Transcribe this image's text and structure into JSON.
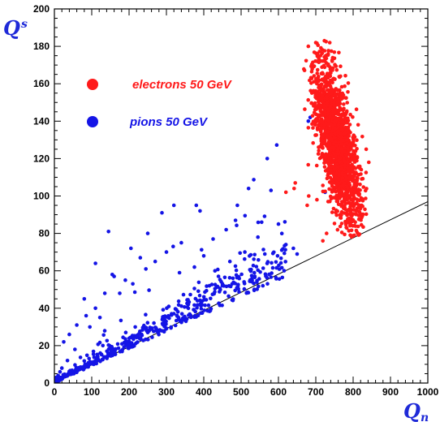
{
  "chart_data": {
    "type": "scatter",
    "title": "",
    "xlabel": "Q",
    "xlabel_sub": "n",
    "ylabel": "Q",
    "ylabel_sub": "s",
    "xlim": [
      0,
      1000
    ],
    "ylim": [
      0,
      200
    ],
    "x_ticks": [
      0,
      100,
      200,
      300,
      400,
      500,
      600,
      700,
      800,
      900,
      1000
    ],
    "y_ticks": [
      0,
      20,
      40,
      60,
      80,
      100,
      120,
      140,
      160,
      180,
      200
    ],
    "x_minor_step": 20,
    "y_minor_step": 5,
    "grid": false,
    "legend_placement": "top-left",
    "reference_line": {
      "x": [
        0,
        1000
      ],
      "y": [
        0,
        97
      ],
      "color": "#000000"
    },
    "series": [
      {
        "name": "electrons 50 GeV",
        "color": "#ff1a1a",
        "cluster": {
          "count": 1700,
          "center": [
            758,
            128
          ],
          "sd_x": 30,
          "sd_y": 17,
          "slope_y_per_x": -0.38,
          "x_range": [
            660,
            840
          ],
          "y_range": [
            78,
            183
          ]
        },
        "points": [
          [
            700,
            182
          ],
          [
            723,
            183
          ],
          [
            680,
            180
          ],
          [
            645,
            107
          ],
          [
            642,
            104
          ],
          [
            620,
            102
          ],
          [
            681,
            100
          ],
          [
            703,
            98
          ],
          [
            719,
            76
          ],
          [
            729,
            80
          ],
          [
            803,
            79
          ],
          [
            835,
            125
          ],
          [
            842,
            118
          ],
          [
            677,
            95
          ]
        ]
      },
      {
        "name": "pions 50 GeV",
        "color": "#1414e6",
        "band": {
          "count": 520,
          "x_range": [
            0,
            620
          ],
          "ratio_mean": 0.105,
          "ratio_sd": 0.012
        },
        "points": [
          [
            145,
            81
          ],
          [
            320,
            95
          ],
          [
            380,
            95
          ],
          [
            390,
            92
          ],
          [
            288,
            91
          ],
          [
            340,
            75
          ],
          [
            425,
            77
          ],
          [
            460,
            82
          ],
          [
            485,
            87
          ],
          [
            490,
            95
          ],
          [
            520,
            104
          ],
          [
            570,
            120
          ],
          [
            580,
            103
          ],
          [
            600,
            85
          ],
          [
            555,
            86
          ],
          [
            545,
            78
          ],
          [
            510,
            70
          ],
          [
            470,
            65
          ],
          [
            430,
            60
          ],
          [
            415,
            52
          ],
          [
            400,
            68
          ],
          [
            375,
            62
          ],
          [
            335,
            59
          ],
          [
            318,
            73
          ],
          [
            300,
            70
          ],
          [
            270,
            65
          ],
          [
            230,
            67
          ],
          [
            205,
            72
          ],
          [
            190,
            55
          ],
          [
            160,
            57
          ],
          [
            135,
            48
          ],
          [
            110,
            40
          ],
          [
            85,
            36
          ],
          [
            60,
            31
          ],
          [
            40,
            26
          ],
          [
            25,
            22
          ],
          [
            80,
            45
          ],
          [
            110,
            64
          ],
          [
            155,
            58
          ],
          [
            250,
            80
          ],
          [
            450,
            53
          ],
          [
            245,
            61
          ],
          [
            210,
            53
          ],
          [
            175,
            48
          ],
          [
            122,
            35
          ],
          [
            95,
            30
          ],
          [
            55,
            18
          ],
          [
            35,
            12
          ],
          [
            20,
            8
          ],
          [
            10,
            4
          ],
          [
            5,
            2
          ],
          [
            15,
            6
          ],
          [
            745,
            113
          ],
          [
            680,
            140
          ],
          [
            685,
            142
          ],
          [
            725,
            102
          ],
          [
            640,
            72
          ],
          [
            650,
            69
          ],
          [
            620,
            74
          ]
        ]
      }
    ]
  }
}
